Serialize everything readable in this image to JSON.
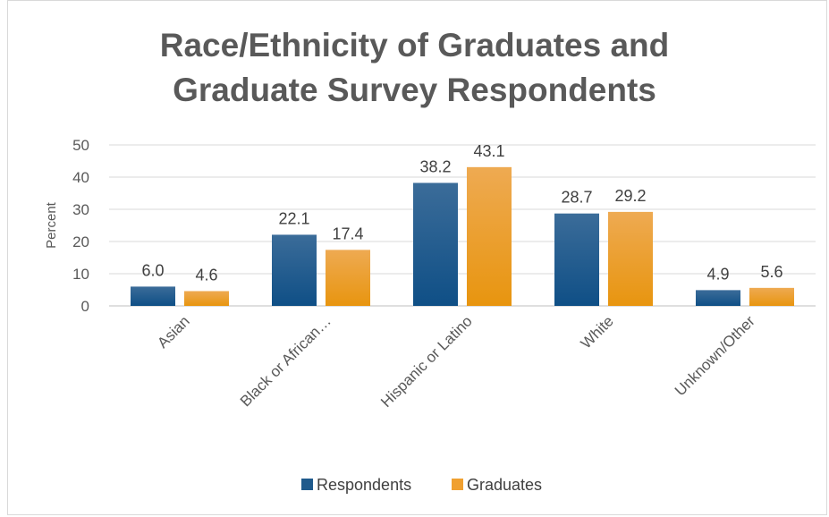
{
  "chart_data": {
    "type": "bar",
    "title_line1": "Race/Ethnicity of Graduates and",
    "title_line2": "Graduate Survey Respondents",
    "ylabel": "Percent",
    "xlabel": "",
    "ylim": [
      0,
      50
    ],
    "yticks": [
      0,
      10,
      20,
      30,
      40,
      50
    ],
    "grid": true,
    "legend_position": "bottom",
    "categories": [
      "Asian",
      "Black or African…",
      "Hispanic or Latino",
      "White",
      "Unknown/Other"
    ],
    "series": [
      {
        "name": "Respondents",
        "values": [
          6.0,
          22.1,
          38.2,
          28.7,
          4.9
        ],
        "color": "#1f5a8c"
      },
      {
        "name": "Graduates",
        "values": [
          4.6,
          17.4,
          43.1,
          29.2,
          5.6
        ],
        "color": "#f0a030"
      }
    ]
  }
}
